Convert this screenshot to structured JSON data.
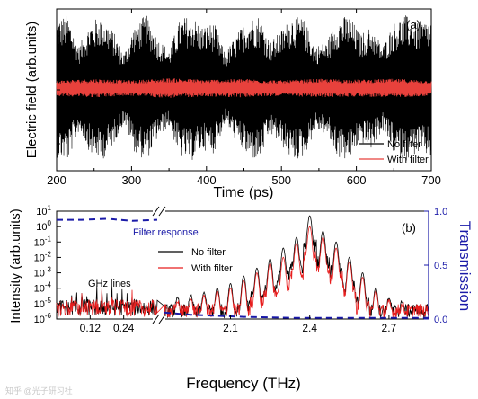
{
  "chart_data": [
    {
      "type": "line",
      "panel_label": "(a)",
      "xlabel": "Time (ps)",
      "ylabel": "Electric field (arb.units)",
      "xlim": [
        200,
        700
      ],
      "x_ticks": [
        200,
        300,
        400,
        500,
        600,
        700
      ],
      "y_ticks_labeled": false,
      "legend_position": "bottom-right",
      "series": [
        {
          "name": "No filter",
          "color": "#000000",
          "envelope_x": [
            200,
            215,
            230,
            245,
            260,
            275,
            290,
            305,
            320,
            335,
            350,
            365,
            380,
            395,
            410,
            425,
            440,
            455,
            470,
            485,
            500,
            515,
            530,
            545,
            560,
            575,
            590,
            605,
            620,
            635,
            650,
            665,
            680,
            700
          ],
          "envelope_amplitude": [
            0.9,
            0.95,
            0.55,
            0.85,
            0.95,
            0.75,
            0.45,
            0.85,
            0.95,
            0.65,
            0.5,
            0.9,
            0.95,
            0.8,
            0.85,
            0.45,
            0.7,
            0.9,
            0.95,
            0.6,
            0.75,
            0.95,
            0.9,
            0.55,
            0.6,
            0.9,
            0.95,
            0.7,
            0.8,
            0.55,
            0.85,
            0.95,
            0.85,
            0.9
          ]
        },
        {
          "name": "With filter",
          "color": "#e8413c",
          "envelope_x": [
            200,
            250,
            300,
            350,
            400,
            450,
            500,
            550,
            600,
            650,
            700
          ],
          "envelope_amplitude": [
            0.1,
            0.12,
            0.1,
            0.13,
            0.11,
            0.12,
            0.1,
            0.12,
            0.11,
            0.12,
            0.1
          ]
        }
      ]
    },
    {
      "type": "line",
      "panel_label": "(b)",
      "xlabel": "Frequency (THz)",
      "ylabel": "Intensity (arb.units)",
      "y2label": "Transmission",
      "y_scale": "log",
      "ylim": [
        1e-06,
        10
      ],
      "y_ticks": [
        "10-6",
        "10-5",
        "10-4",
        "10-3",
        "10-2",
        "10-1",
        "100",
        "101"
      ],
      "y2lim": [
        0,
        1
      ],
      "y2_ticks": [
        "0.0",
        "0.5",
        "1.0"
      ],
      "x_axis_broken": true,
      "x_segment_1": {
        "range": [
          0,
          0.36
        ],
        "ticks": [
          "0.12",
          "0.24"
        ]
      },
      "x_segment_2": {
        "range": [
          1.85,
          2.85
        ],
        "ticks": [
          "2.1",
          "2.4",
          "2.7"
        ]
      },
      "legend_position": "top-center",
      "annotations": [
        "GHz lines",
        "Filter response"
      ],
      "series": [
        {
          "name": "No filter",
          "color": "#000000",
          "peaks_thz": [
            1.9,
            1.95,
            2.0,
            2.05,
            2.1,
            2.15,
            2.2,
            2.25,
            2.3,
            2.35,
            2.4,
            2.45,
            2.5,
            2.55,
            2.6,
            2.65,
            2.7,
            2.75,
            2.8
          ],
          "peak_intensity": [
            2e-05,
            3e-05,
            5e-05,
            0.0001,
            0.0002,
            0.0006,
            0.002,
            0.008,
            0.04,
            0.2,
            5,
            0.5,
            0.1,
            0.01,
            0.001,
            0.0001,
            2e-05,
            1e-05,
            2e-06
          ]
        },
        {
          "name": "With filter",
          "color": "#e81d1d",
          "peaks_thz": [
            1.9,
            1.95,
            2.0,
            2.05,
            2.1,
            2.15,
            2.2,
            2.25,
            2.3,
            2.35,
            2.4,
            2.45,
            2.5,
            2.55,
            2.6,
            2.65,
            2.7,
            2.75,
            2.8
          ],
          "peak_intensity": [
            1e-05,
            1.5e-05,
            3e-05,
            6e-05,
            0.0001,
            0.0003,
            0.001,
            0.004,
            0.01,
            0.08,
            1,
            0.2,
            0.04,
            0.005,
            0.0005,
            6e-05,
            1e-05,
            5e-06,
            1e-06
          ]
        },
        {
          "name": "Filter response",
          "color": "#1a1aa8",
          "style": "dashed",
          "axis": "right",
          "x_desc": "left segment then right segment",
          "transmission_left": [
            0.92,
            0.92,
            0.93,
            0.91,
            0.92
          ],
          "transmission_right": [
            0.06,
            0.04,
            0.03,
            0.02,
            0.015,
            0.01,
            0.01,
            0.01,
            0.01,
            0.01,
            0.01
          ]
        }
      ]
    }
  ],
  "watermark": "知乎 @光子研习社"
}
